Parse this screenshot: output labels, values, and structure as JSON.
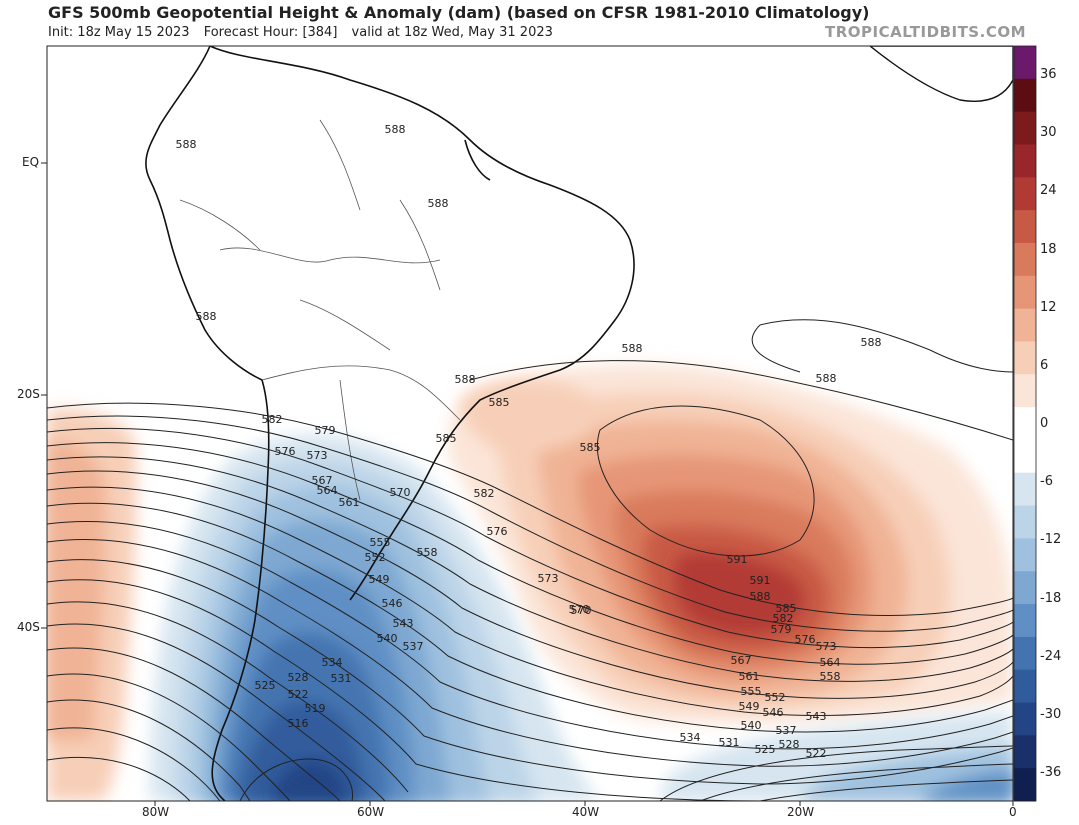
{
  "header": {
    "title": "GFS 500mb Geopotential Height & Anomaly (dam) (based on CFSR 1981-2010 Climatology)",
    "init": "Init: 18z May 15 2023",
    "forecast_hour": "Forecast Hour: [384]",
    "valid": "valid at 18z Wed, May 31 2023",
    "credit": "TROPICALTIDBITS.COM"
  },
  "axes": {
    "lat_labels": [
      "EQ",
      "20S",
      "40S"
    ],
    "lon_labels": [
      "80W",
      "60W",
      "40W",
      "20W",
      "0"
    ]
  },
  "colorbar": {
    "labels": [
      "36",
      "30",
      "24",
      "18",
      "12",
      "6",
      "0",
      "-6",
      "-12",
      "-18",
      "-24",
      "-30",
      "-36"
    ],
    "colors": [
      "#6b1a6b",
      "#5c0d12",
      "#7d1a1c",
      "#98262a",
      "#b23a35",
      "#c85a45",
      "#d97a5c",
      "#e69677",
      "#f0b395",
      "#f7cfb8",
      "#fbe5d8",
      "#ffffff",
      "#ffffff",
      "#d6e5f0",
      "#bcd4e8",
      "#9fc1df",
      "#7ea8d2",
      "#5f8fc4",
      "#4474b0",
      "#315c9c",
      "#234585",
      "#1a306a",
      "#0f1f50"
    ]
  },
  "contour_labels": {
    "ridge": [
      "588",
      "585",
      "591",
      "582",
      "579",
      "576",
      "573",
      "570",
      "567",
      "564",
      "561",
      "558",
      "555",
      "552",
      "549",
      "546",
      "543",
      "540",
      "537",
      "534",
      "531",
      "528",
      "525",
      "522",
      "519",
      "516"
    ]
  },
  "map_labels": [
    "588",
    "588",
    "588",
    "588",
    "588",
    "588",
    "588",
    "588",
    "585",
    "585",
    "585",
    "591",
    "591",
    "588",
    "585",
    "582",
    "579",
    "576",
    "573",
    "570",
    "567",
    "564",
    "561",
    "558",
    "555",
    "552",
    "549",
    "546",
    "543",
    "540",
    "537",
    "534",
    "531",
    "528",
    "525",
    "522",
    "582",
    "579",
    "576",
    "573",
    "570",
    "567",
    "564",
    "561",
    "558",
    "555",
    "552",
    "549",
    "546",
    "543",
    "540",
    "537",
    "534",
    "531",
    "528",
    "525",
    "522",
    "519",
    "516",
    "573",
    "570",
    "576",
    "582"
  ]
}
